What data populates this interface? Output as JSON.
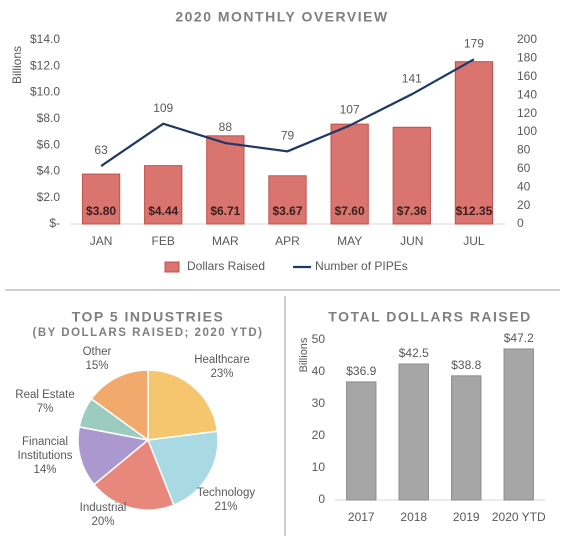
{
  "chart_data": [
    {
      "type": "combo",
      "title": "2020 MONTHLY OVERVIEW",
      "y_label": "Billions",
      "categories": [
        "JAN",
        "FEB",
        "MAR",
        "APR",
        "MAY",
        "JUN",
        "JUL"
      ],
      "series": [
        {
          "name": "Dollars Raised",
          "type": "bar",
          "color": "#d9746f",
          "values": [
            3.8,
            4.44,
            6.71,
            3.67,
            7.6,
            7.36,
            12.35
          ],
          "value_labels": [
            "$3.80",
            "$4.44",
            "$6.71",
            "$3.67",
            "$7.60",
            "$7.36",
            "$12.35"
          ]
        },
        {
          "name": "Number of PIPEs",
          "type": "line",
          "axis": "y2",
          "color": "#1f3864",
          "values": [
            63,
            109,
            88,
            79,
            107,
            141,
            179
          ]
        }
      ],
      "ylim": [
        0,
        14
      ],
      "yticks": [
        {
          "value": 0,
          "label": "$-"
        },
        {
          "value": 2,
          "label": "$2.0"
        },
        {
          "value": 4,
          "label": "$4.0"
        },
        {
          "value": 6,
          "label": "$6.0"
        },
        {
          "value": 8,
          "label": "$8.0"
        },
        {
          "value": 10,
          "label": "$10.0"
        },
        {
          "value": 12,
          "label": "$12.0"
        },
        {
          "value": 14,
          "label": "$14.0"
        }
      ],
      "y2lim": [
        0,
        200
      ],
      "y2ticks": [
        0,
        20,
        40,
        60,
        80,
        100,
        120,
        140,
        160,
        180,
        200
      ],
      "grid": false,
      "legend": "bottom"
    },
    {
      "type": "pie",
      "title": "TOP 5 INDUSTRIES",
      "subtitle": "(BY DOLLARS RAISED; 2020 YTD)",
      "categories": [
        "Healthcare",
        "Technology",
        "Industrial",
        "Financial Institutions",
        "Real Estate",
        "Other"
      ],
      "values": [
        23,
        21,
        20,
        14,
        7,
        15
      ],
      "value_labels": [
        "23%",
        "21%",
        "20%",
        "14%",
        "7%",
        "15%"
      ],
      "colors": [
        "#f6c66e",
        "#a9d9e2",
        "#e8877c",
        "#ab98cf",
        "#9ccbbf",
        "#f2aa6c"
      ]
    },
    {
      "type": "bar",
      "title": "TOTAL DOLLARS RAISED",
      "y_label": "Billions",
      "categories": [
        "2017",
        "2018",
        "2019",
        "2020 YTD"
      ],
      "values": [
        36.9,
        42.5,
        38.8,
        47.2
      ],
      "value_labels": [
        "$36.9",
        "$42.5",
        "$38.8",
        "$47.2"
      ],
      "color": "#a6a6a6",
      "ylim": [
        0,
        50
      ],
      "yticks": [
        0,
        10,
        20,
        30,
        40,
        50
      ],
      "grid": false
    }
  ]
}
